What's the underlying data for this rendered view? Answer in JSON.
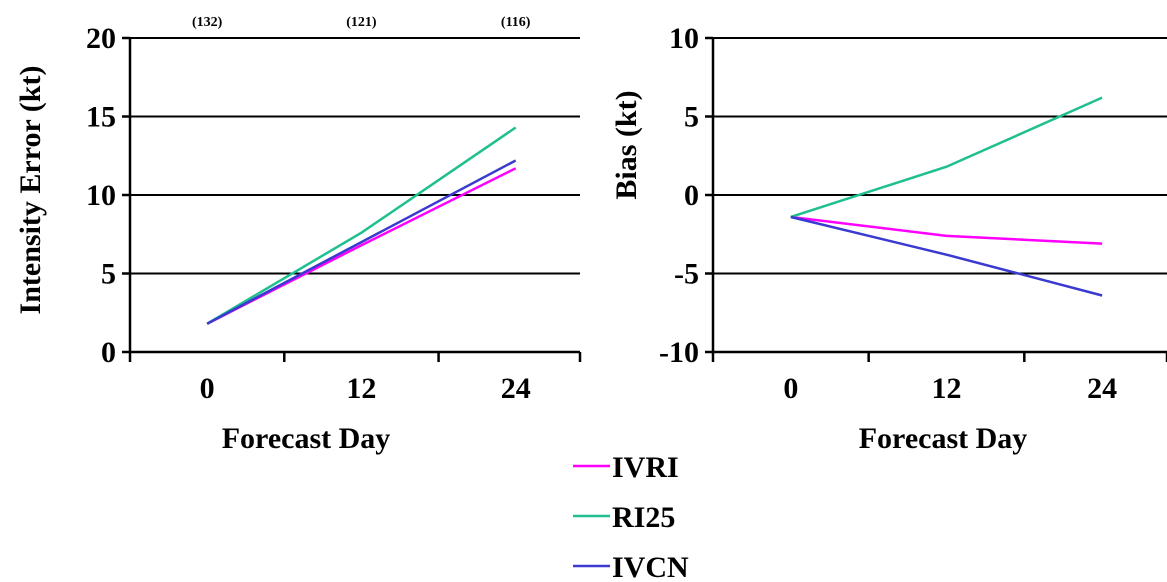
{
  "chart_data": [
    {
      "type": "line",
      "x": [
        0,
        12,
        24
      ],
      "xlabel": "Forecast Day",
      "ylabel": "Intensity Error (kt)",
      "ylim": [
        0,
        20
      ],
      "yticks": [
        0,
        5,
        10,
        15,
        20
      ],
      "xticks": [
        0,
        12,
        24
      ],
      "xlim": [
        -6,
        29
      ],
      "grid": "horizontal",
      "sample_counts": [
        "(132)",
        "(121)",
        "(116)"
      ],
      "series": [
        {
          "name": "IVRI",
          "color": "#ff00ff",
          "values": [
            1.8,
            6.8,
            11.7
          ]
        },
        {
          "name": "RI25",
          "color": "#1fbf8f",
          "values": [
            1.8,
            7.6,
            14.3
          ]
        },
        {
          "name": "IVCN",
          "color": "#3a3ad0",
          "values": [
            1.8,
            7.0,
            12.2
          ]
        }
      ]
    },
    {
      "type": "line",
      "x": [
        0,
        12,
        24
      ],
      "xlabel": "Forecast Day",
      "ylabel": "Bias (kt)",
      "ylim": [
        -10,
        10
      ],
      "yticks": [
        -10,
        -5,
        0,
        5,
        10
      ],
      "xticks": [
        0,
        12,
        24
      ],
      "xlim": [
        -6,
        29
      ],
      "grid": "horizontal",
      "series": [
        {
          "name": "IVRI",
          "color": "#ff00ff",
          "values": [
            -1.4,
            -2.6,
            -3.1
          ]
        },
        {
          "name": "RI25",
          "color": "#1fbf8f",
          "values": [
            -1.4,
            1.8,
            6.2
          ]
        },
        {
          "name": "IVCN",
          "color": "#3a3ad0",
          "values": [
            -1.4,
            -3.8,
            -6.4
          ]
        }
      ]
    }
  ],
  "legend": {
    "placement": "bottom-center",
    "entries": [
      {
        "label": "IVRI",
        "color": "#ff00ff"
      },
      {
        "label": "RI25",
        "color": "#1fbf8f"
      },
      {
        "label": "IVCN",
        "color": "#3a3ad0"
      }
    ]
  }
}
